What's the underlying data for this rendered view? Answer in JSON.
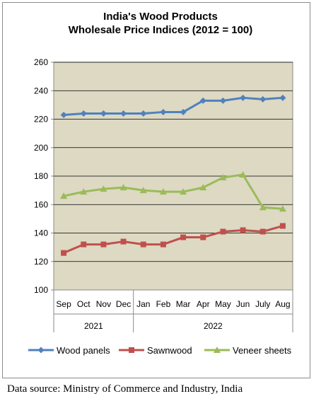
{
  "chart_data": {
    "type": "line",
    "title": "India's Wood Products\nWholesale Price Indices (2012 = 100)",
    "categories": [
      "Sep",
      "Oct",
      "Nov",
      "Dec",
      "Jan",
      "Feb",
      "Mar",
      "Apr",
      "May",
      "Jun",
      "July",
      "Aug"
    ],
    "year_groups": [
      {
        "label": "2021",
        "start": 0,
        "end": 3
      },
      {
        "label": "2022",
        "start": 4,
        "end": 11
      }
    ],
    "ylim": [
      100,
      260
    ],
    "yticks": [
      100,
      120,
      140,
      160,
      180,
      200,
      220,
      240,
      260
    ],
    "grid": true,
    "legend_position": "bottom",
    "plot_background": "#ddd9c3",
    "series": [
      {
        "name": "Wood panels",
        "color": "#4f81bd",
        "marker": "diamond",
        "values": [
          223,
          224,
          224,
          224,
          224,
          225,
          225,
          233,
          233,
          235,
          234,
          235
        ]
      },
      {
        "name": "Sawnwood",
        "color": "#c0504d",
        "marker": "square",
        "values": [
          126,
          132,
          132,
          134,
          132,
          132,
          137,
          137,
          141,
          142,
          141,
          145
        ]
      },
      {
        "name": "Veneer sheets",
        "color": "#9bbb59",
        "marker": "triangle",
        "values": [
          166,
          169,
          171,
          172,
          170,
          169,
          169,
          172,
          179,
          181,
          158,
          157
        ]
      }
    ]
  },
  "source_note": "Data source: Ministry of Commerce and Industry, India"
}
